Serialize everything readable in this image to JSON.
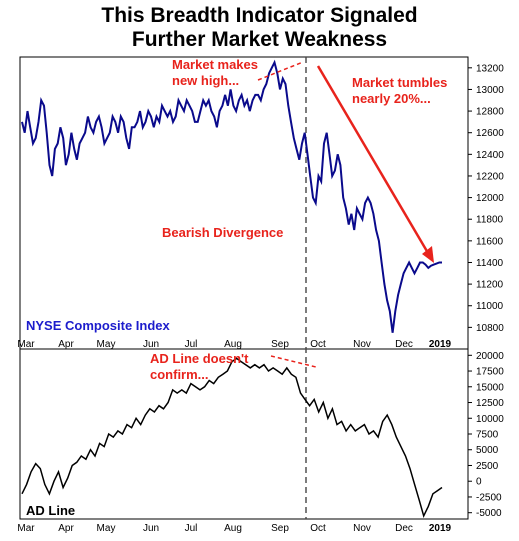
{
  "title_lines": [
    "This Breadth Indicator Signaled",
    "Further Market Weakness"
  ],
  "colors": {
    "nyse_line": "#0a0a8c",
    "ad_line": "#000000",
    "annotation": "#e8231c",
    "index_label": "#1c1ccc"
  },
  "chart_data": [
    {
      "type": "line",
      "label": "NYSE Composite Index",
      "months": [
        "Mar",
        "Apr",
        "May",
        "Jun",
        "Jul",
        "Aug",
        "Sep",
        "Oct",
        "Nov",
        "Dec",
        "2019"
      ],
      "ylim": [
        10600,
        13300
      ],
      "yticks": [
        10800,
        11000,
        11200,
        11400,
        11600,
        11800,
        12000,
        12200,
        12400,
        12600,
        12800,
        13000,
        13200
      ],
      "x": [
        0,
        2,
        4,
        6,
        8,
        10,
        12,
        14,
        16,
        18,
        20,
        22,
        24,
        26,
        28,
        30,
        32,
        34,
        36,
        38,
        40,
        42,
        44,
        46,
        48,
        50,
        52,
        54,
        56,
        58,
        60,
        62,
        64,
        66,
        68,
        70,
        72,
        74,
        76,
        78,
        80,
        82,
        84,
        86,
        88,
        90,
        92,
        94,
        96,
        98,
        100,
        102,
        104,
        106,
        108,
        110,
        112,
        114,
        116,
        118,
        120,
        122,
        124,
        126,
        128,
        130,
        132,
        134,
        136,
        138,
        140,
        142,
        144,
        146,
        148,
        150,
        152,
        154,
        156,
        158,
        160,
        162,
        164,
        166,
        168,
        170,
        172,
        174,
        176,
        178,
        180,
        182,
        184,
        186,
        188,
        190,
        192,
        194,
        196,
        198,
        200,
        202,
        204,
        206,
        208,
        210,
        212,
        214,
        216,
        218,
        220,
        222,
        224,
        226,
        228,
        230,
        232,
        234,
        236,
        238,
        240,
        242,
        244,
        246,
        248,
        250,
        252,
        254,
        256,
        258,
        260,
        262,
        264,
        266,
        268,
        270,
        272,
        274,
        276,
        278,
        280,
        282,
        284,
        286,
        288,
        290,
        292,
        294,
        296,
        298,
        300,
        302,
        304,
        306
      ],
      "values": [
        12700,
        12600,
        12800,
        12650,
        12500,
        12550,
        12700,
        12900,
        12850,
        12600,
        12300,
        12200,
        12450,
        12500,
        12650,
        12550,
        12300,
        12400,
        12600,
        12450,
        12350,
        12500,
        12550,
        12600,
        12750,
        12650,
        12600,
        12700,
        12750,
        12650,
        12500,
        12550,
        12600,
        12750,
        12700,
        12600,
        12750,
        12700,
        12550,
        12450,
        12650,
        12650,
        12700,
        12800,
        12650,
        12700,
        12800,
        12750,
        12650,
        12750,
        12700,
        12850,
        12800,
        12750,
        12800,
        12700,
        12750,
        12900,
        12850,
        12800,
        12900,
        12850,
        12800,
        12700,
        12700,
        12800,
        12900,
        12850,
        12900,
        12800,
        12750,
        12650,
        12800,
        12850,
        12950,
        12850,
        13000,
        12850,
        12800,
        12900,
        12950,
        12850,
        12900,
        12800,
        12900,
        12950,
        12950,
        12900,
        13000,
        13050,
        13150,
        13200,
        13250,
        13150,
        13000,
        13100,
        13050,
        12850,
        12700,
        12550,
        12450,
        12350,
        12500,
        12600,
        12400,
        12200,
        12000,
        11950,
        12200,
        12150,
        12500,
        12600,
        12400,
        12200,
        12250,
        12400,
        12300,
        12000,
        11900,
        11750,
        11850,
        11700,
        11900,
        11850,
        11800,
        11950,
        12000,
        11950,
        11850,
        11700,
        11600,
        11400,
        11200,
        11050,
        10950,
        10750,
        10950,
        11100,
        11200,
        11300,
        11350,
        11400,
        11350,
        11300,
        11350,
        11400,
        11400,
        11380,
        11350,
        11370,
        11380,
        11390,
        11400,
        11400
      ],
      "value_note": "plotted on the index scale"
    },
    {
      "type": "line",
      "label": "AD Line",
      "months": [
        "Mar",
        "Apr",
        "May",
        "Jun",
        "Jul",
        "Aug",
        "Sep",
        "Oct",
        "Nov",
        "Dec",
        "2019"
      ],
      "ylim": [
        -6000,
        21000
      ],
      "yticks": [
        -5000,
        -2500,
        0,
        2500,
        5000,
        7500,
        10000,
        12500,
        15000,
        17500,
        20000
      ]
    }
  ],
  "annotations": {
    "top_high": "Market makes\nnew high...",
    "tumble": "Market tumbles\nnearly 20%...",
    "divergence": "Bearish Divergence",
    "ad_confirm": "AD Line doesn't\nconfirm..."
  }
}
